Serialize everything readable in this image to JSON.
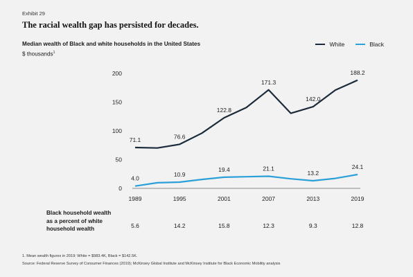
{
  "exhibit": "Exhibit 29",
  "headline": "The racial wealth gap has persisted for decades.",
  "chart_title": "Median wealth of Black and white households in the United States",
  "units": "$ thousands",
  "units_note": "1",
  "legend": [
    {
      "label": "White",
      "color": "#1b2a3a"
    },
    {
      "label": "Black",
      "color": "#2a9fd8"
    }
  ],
  "chart_data": {
    "type": "line",
    "x": [
      1989,
      1992,
      1995,
      1998,
      2001,
      2004,
      2007,
      2010,
      2013,
      2016,
      2019
    ],
    "xticks": [
      1989,
      1995,
      2001,
      2007,
      2013,
      2019
    ],
    "yticks": [
      0,
      50,
      100,
      150,
      200
    ],
    "ylim": [
      0,
      200
    ],
    "series": [
      {
        "name": "White",
        "color": "#1b2a3a",
        "values": [
          71.1,
          70.2,
          76.6,
          96.0,
          122.8,
          140.7,
          171.3,
          130.6,
          142.0,
          171.0,
          188.2
        ],
        "labels": {
          "1989": "71.1",
          "1995": "76.6",
          "2001": "122.8",
          "2007": "171.3",
          "2013": "142.0",
          "2019": "188.2"
        }
      },
      {
        "name": "Black",
        "color": "#2a9fd8",
        "values": [
          4.0,
          9.8,
          10.9,
          15.5,
          19.4,
          20.2,
          21.1,
          16.6,
          13.2,
          17.4,
          24.1
        ],
        "labels": {
          "1989": "4.0",
          "1995": "10.9",
          "2001": "19.4",
          "2007": "21.1",
          "2013": "13.2",
          "2019": "24.1"
        }
      }
    ],
    "percent_row": {
      "label": "Black household wealth as a percent of white household wealth",
      "years": [
        1989,
        1995,
        2001,
        2007,
        2013,
        2019
      ],
      "values": [
        "5.6",
        "14.2",
        "15.8",
        "12.3",
        "9.3",
        "12.8"
      ]
    }
  },
  "footnote": "1.    Mean wealth figures in 2019: White = $983.4K, Black = $142.5K.",
  "source": "Source: Federal Reserve Survey of Consumer Finances (2019); McKinsey Global Institute and McKinsey Institute for Black Economic Mobility analysis"
}
